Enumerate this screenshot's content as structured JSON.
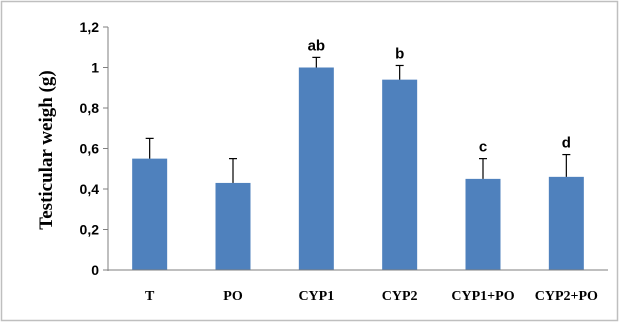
{
  "chart_data": {
    "type": "bar",
    "title": "",
    "xlabel": "",
    "ylabel": "Testicular  weigh (g)",
    "categories": [
      "T",
      "PO",
      "CYP1",
      "CYP2",
      "CYP1+PO",
      "CYP2+PO"
    ],
    "values": [
      0.55,
      0.43,
      1.0,
      0.94,
      0.45,
      0.46
    ],
    "error_bars": [
      0.1,
      0.12,
      0.05,
      0.07,
      0.1,
      0.11
    ],
    "annotations": [
      "",
      "",
      "ab",
      "b",
      "c",
      "d"
    ],
    "ylim": [
      0,
      1.2
    ],
    "yticks": [
      0,
      0.2,
      0.4,
      0.6,
      0.8,
      1.0,
      1.2
    ],
    "ytick_labels": [
      "0",
      "0,2",
      "0,4",
      "0,6",
      "0,8",
      "1",
      "1,2"
    ],
    "grid": false,
    "legend": "none",
    "colors": {
      "bar": "#4f81bd",
      "axis": "#7f7f7f",
      "frame": "#bfbfbf"
    }
  }
}
